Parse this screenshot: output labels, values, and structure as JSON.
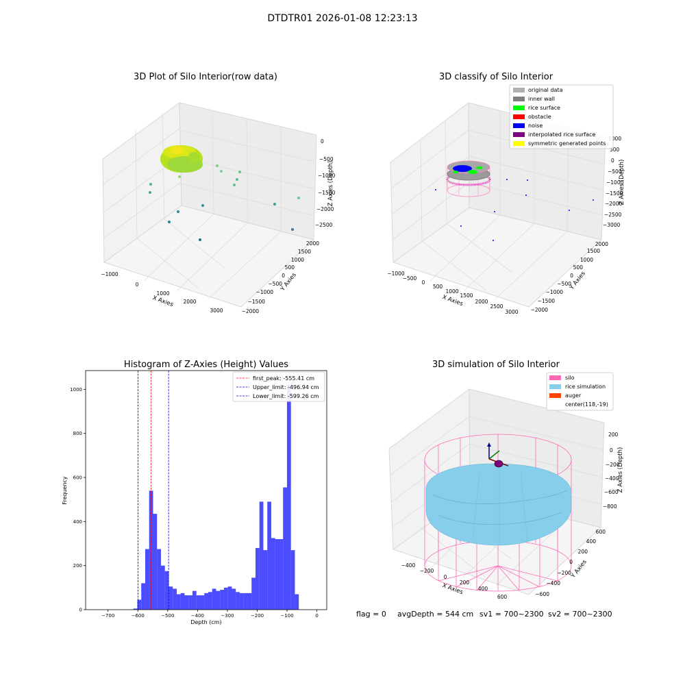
{
  "figure": {
    "suptitle": "DTDTR01 2026-01-08 12:23:13",
    "footer": {
      "flag": "flag = 0",
      "avg_depth": "avgDepth = 544 cm",
      "sv1": "sv1 = 700~2300",
      "sv2": "sv2 = 700~2300"
    }
  },
  "colors": {
    "bar": "#0000ff",
    "first_peak": "#ff0000",
    "limit": "#0000cd",
    "silo": "#ff69b4",
    "rice_simulation": "#87ceeb",
    "auger": "#ff4500",
    "original_data": "#b0b0b0",
    "inner_wall": "#808080",
    "rice_surface": "#00ff00",
    "obstacle": "#ff0000",
    "noise": "#0000ff",
    "interpolated_rice_surface": "#800080",
    "symmetric_generated_points": "#ffff00"
  },
  "chart_data": [
    {
      "id": "raw",
      "type": "scatter3d",
      "title": "3D Plot of Silo Interior(row data)",
      "xlabel": "X Axies",
      "ylabel": "Y Axies",
      "zlabel": "Z Axies (Depth)",
      "xticks": [
        "−1000",
        "0",
        "1000",
        "2000",
        "3000"
      ],
      "yticks": [
        "−2000",
        "−1500",
        "−1000",
        "−500",
        "0",
        "500",
        "1000",
        "1500",
        "2000"
      ],
      "zticks": [
        "0",
        "−500",
        "−1000",
        "−1500",
        "−2000",
        "−2500"
      ]
    },
    {
      "id": "classify",
      "type": "scatter3d",
      "title": "3D classify of Silo Interior",
      "xlabel": "X Axies",
      "ylabel": "Y Axies",
      "zlabel": "Z Axies (Depth)",
      "xticks": [
        "−1000",
        "−500",
        "0",
        "500",
        "1000",
        "1500",
        "2000",
        "2500",
        "3000"
      ],
      "yticks": [
        "−2000",
        "−1500",
        "−1000",
        "−500",
        "0",
        "500",
        "1000",
        "1500",
        "2000"
      ],
      "zticks": [
        "1000",
        "500",
        "0",
        "−500",
        "−1000",
        "−1500",
        "−2000",
        "−2500",
        "−3000"
      ],
      "legend": [
        {
          "label": "original data",
          "color": "#b0b0b0"
        },
        {
          "label": "inner wall",
          "color": "#808080"
        },
        {
          "label": "rice surface",
          "color": "#00ff00"
        },
        {
          "label": "obstacle",
          "color": "#ff0000"
        },
        {
          "label": "noise",
          "color": "#0000ff"
        },
        {
          "label": "interpolated rice surface",
          "color": "#800080"
        },
        {
          "label": "symmetric generated points",
          "color": "#ffff00"
        }
      ]
    },
    {
      "id": "hist",
      "type": "bar",
      "title": "Histogram of Z-Axies (Height) Values",
      "xlabel": "Depth (cm)",
      "ylabel": "Frequency",
      "xlim": [
        -775,
        33
      ],
      "ylim": [
        0,
        1085
      ],
      "xticks": [
        -700,
        -600,
        -500,
        -400,
        -300,
        -200,
        -100,
        0
      ],
      "xtick_labels": [
        "−700",
        "−600",
        "−500",
        "−400",
        "−300",
        "−200",
        "−100",
        "0"
      ],
      "yticks": [
        0,
        200,
        400,
        600,
        800,
        1000
      ],
      "bin_width": 13.2,
      "bin_starts": [
        -615,
        -601.8,
        -588.6,
        -575.4,
        -562.2,
        -549,
        -535.8,
        -522.6,
        -509.4,
        -496.2,
        -483,
        -469.8,
        -456.6,
        -443.4,
        -430.2,
        -417,
        -403.8,
        -390.6,
        -377.4,
        -364.2,
        -351,
        -337.8,
        -324.6,
        -311.4,
        -298.2,
        -285,
        -271.8,
        -258.6,
        -245.4,
        -232.2,
        -219,
        -205.8,
        -192.6,
        -179.4,
        -166.2,
        -153,
        -139.8,
        -126.6,
        -113.4,
        -100.2,
        -87,
        -73.8,
        -60.6,
        -47.4,
        -34.2,
        -21
      ],
      "values": [
        5,
        45,
        120,
        275,
        540,
        435,
        275,
        200,
        175,
        105,
        95,
        70,
        75,
        65,
        65,
        85,
        65,
        65,
        75,
        80,
        95,
        85,
        90,
        100,
        105,
        95,
        80,
        75,
        75,
        75,
        145,
        280,
        490,
        270,
        490,
        325,
        320,
        320,
        555,
        1020,
        270,
        70,
        0,
        0,
        0,
        0
      ],
      "vlines": [
        {
          "x": -555.41,
          "label": "first_peak: -555.41 cm",
          "color": "#ff0000"
        },
        {
          "x": -496.94,
          "label": "Upper_limit: -496.94 cm",
          "color": "#0000cd"
        },
        {
          "x": -599.26,
          "label": "Lower_limit: -599.26 cm",
          "color": "#0000cd"
        }
      ]
    },
    {
      "id": "sim",
      "type": "surface3d",
      "title": "3D simulation of Silo Interior",
      "xlabel": "X Axies",
      "ylabel": "Y Axies",
      "zlabel": "Z Axies (Depth)",
      "xticks": [
        "−400",
        "−200",
        "0",
        "200",
        "400",
        "600"
      ],
      "yticks": [
        "−600",
        "−400",
        "−200",
        "0",
        "200",
        "400",
        "600"
      ],
      "zticks": [
        "200",
        "0",
        "−200",
        "−400",
        "−600",
        "−800"
      ],
      "legend": [
        {
          "label": "silo",
          "color": "#ff69b4"
        },
        {
          "label": "rice simulation",
          "color": "#87ceeb"
        },
        {
          "label": "auger",
          "color": "#ff4500"
        },
        {
          "label": "center(118,-19)",
          "color": ""
        }
      ]
    }
  ]
}
